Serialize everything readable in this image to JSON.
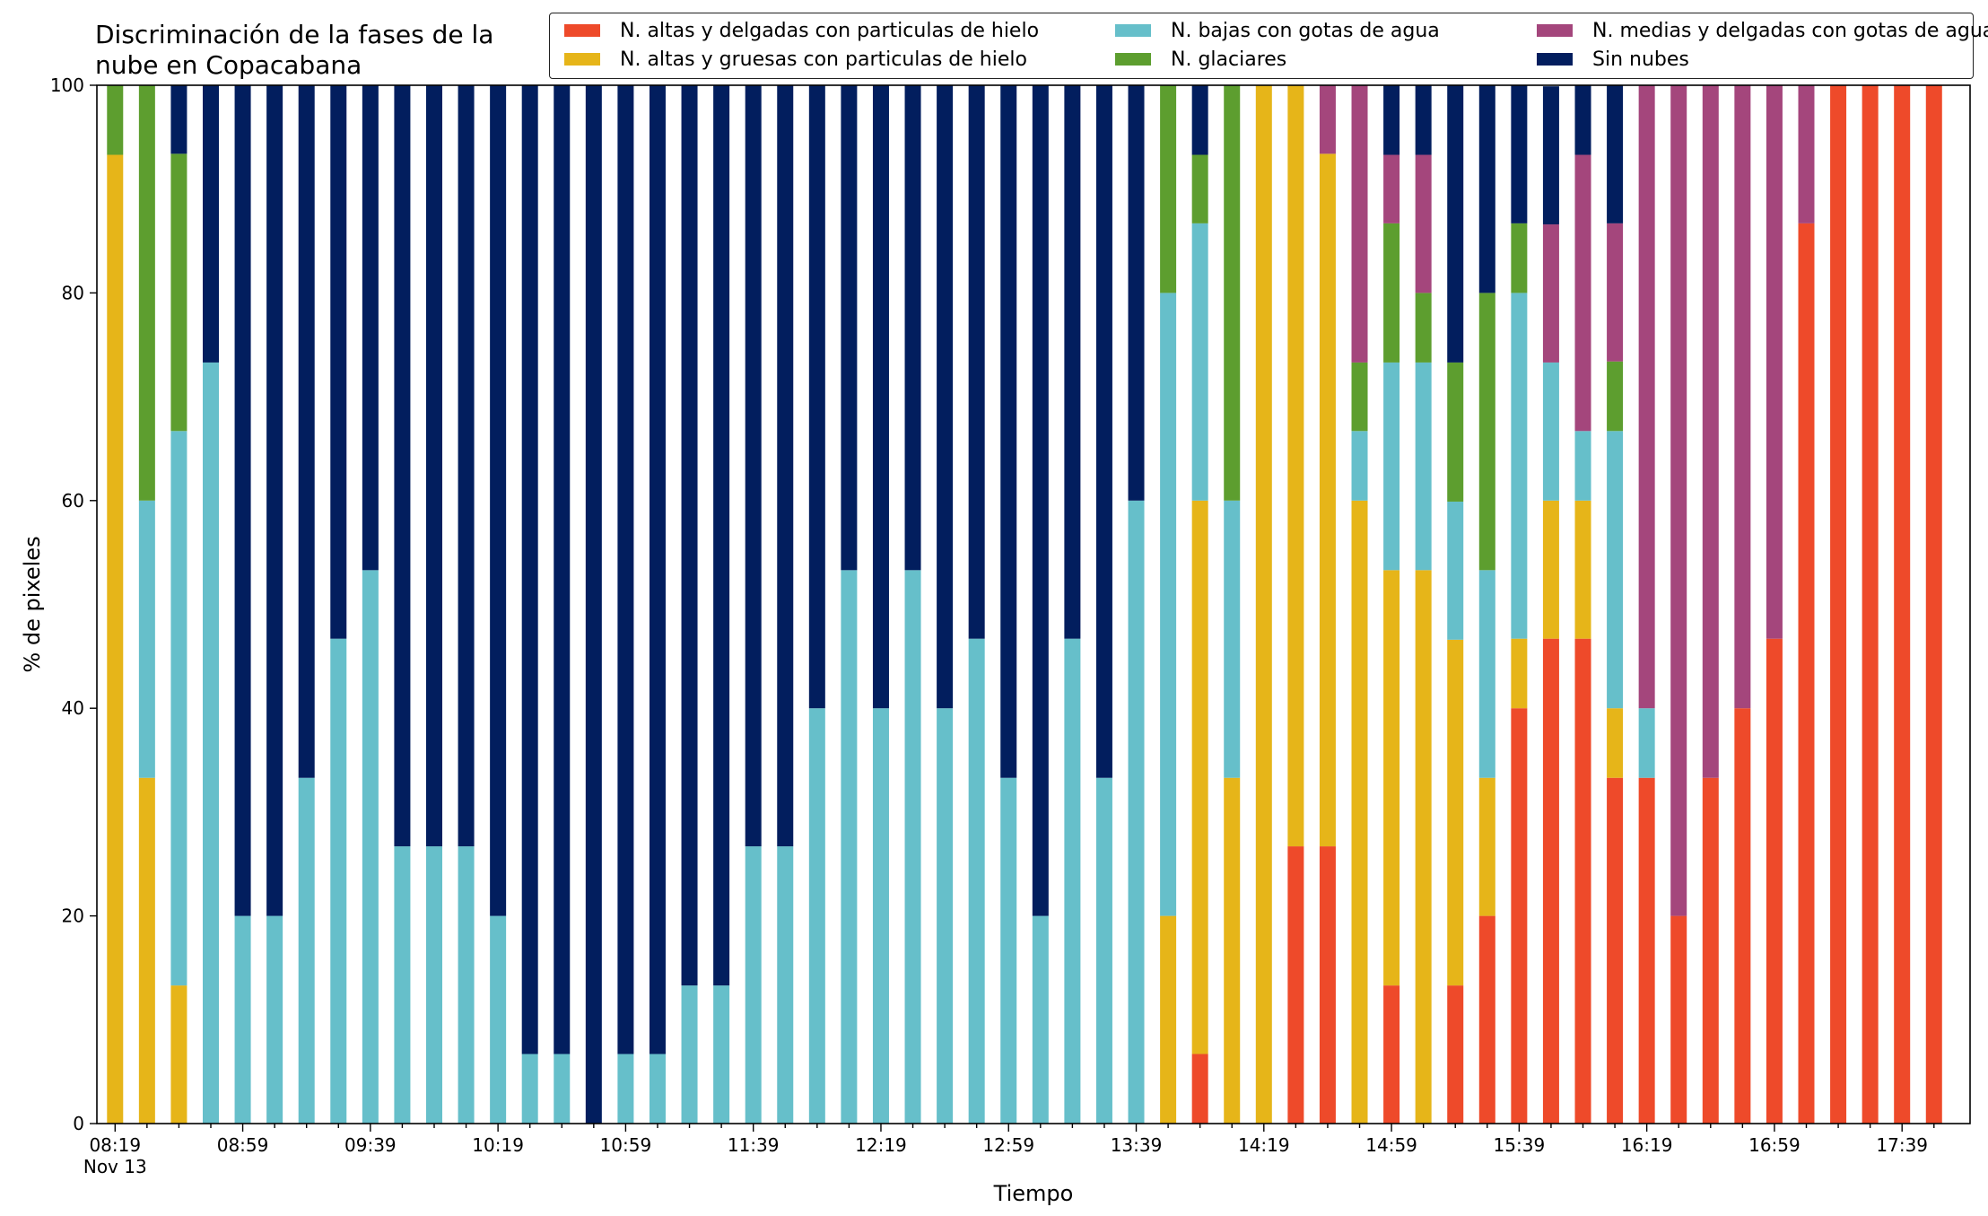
{
  "chart_data": {
    "type": "bar",
    "stacked": true,
    "title": "Discriminación de la fases de la nube en Copacabana",
    "title_lines": [
      "Discriminación de la fases de la",
      "nube en Copacabana"
    ],
    "xlabel": "Tiempo",
    "ylabel": "% de pixeles",
    "ylim": [
      0,
      100
    ],
    "yticks": [
      0,
      20,
      40,
      60,
      80,
      100
    ],
    "xtick_labels": [
      "08:19",
      "08:59",
      "09:39",
      "10:19",
      "10:59",
      "11:39",
      "12:19",
      "12:59",
      "13:39",
      "14:19",
      "14:59",
      "15:39",
      "16:19",
      "16:59",
      "17:39"
    ],
    "xtick_sublabel": "Nov 13",
    "grid": false,
    "legend_position": "top-right",
    "categories": [
      "08:19",
      "08:29",
      "08:39",
      "08:49",
      "08:59",
      "09:09",
      "09:19",
      "09:29",
      "09:39",
      "09:49",
      "09:59",
      "10:09",
      "10:19",
      "10:29",
      "10:39",
      "10:49",
      "10:59",
      "11:09",
      "11:19",
      "11:29",
      "11:39",
      "11:49",
      "11:59",
      "12:09",
      "12:19",
      "12:29",
      "12:39",
      "12:49",
      "12:59",
      "13:09",
      "13:19",
      "13:29",
      "13:39",
      "13:49",
      "13:59",
      "14:09",
      "14:19",
      "14:29",
      "14:39",
      "14:49",
      "14:59",
      "15:09",
      "15:19",
      "15:29",
      "15:39",
      "15:49",
      "15:59",
      "16:09",
      "16:19",
      "16:29",
      "16:39",
      "16:49",
      "16:59",
      "17:09",
      "17:19",
      "17:29",
      "17:39",
      "17:49"
    ],
    "series": [
      {
        "name": "N. altas y delgadas con particulas de hielo",
        "color": "#ee4a2a",
        "values": [
          0,
          0,
          0,
          0,
          0,
          0,
          0,
          0,
          0,
          0,
          0,
          0,
          0,
          0,
          0,
          0,
          0,
          0,
          0,
          0,
          0,
          0,
          0,
          0,
          0,
          0,
          0,
          0,
          0,
          0,
          0,
          0,
          0,
          0,
          6.7,
          0,
          0,
          26.7,
          26.7,
          0,
          13.3,
          0,
          13.3,
          20,
          40,
          46.7,
          46.7,
          33.3,
          33.3,
          20,
          33.3,
          40,
          46.7,
          86.7,
          100,
          100,
          100,
          100
        ]
      },
      {
        "name": "N. altas y gruesas con particulas de hielo",
        "color": "#e6b519",
        "values": [
          93.3,
          33.3,
          13.3,
          0,
          0,
          0,
          0,
          0,
          0,
          0,
          0,
          0,
          0,
          0,
          0,
          0,
          0,
          0,
          0,
          0,
          0,
          0,
          0,
          0,
          0,
          0,
          0,
          0,
          0,
          0,
          0,
          0,
          0,
          20,
          53.3,
          33.3,
          100,
          73.3,
          66.7,
          60,
          40,
          53.3,
          33.3,
          13.3,
          6.7,
          13.3,
          13.3,
          6.7,
          0,
          0,
          0,
          0,
          0,
          0,
          0,
          0,
          0,
          0
        ]
      },
      {
        "name": "N. bajas con gotas de agua",
        "color": "#66bfca",
        "values": [
          0,
          26.7,
          53.4,
          73.3,
          20,
          20,
          33.3,
          46.7,
          53.3,
          26.7,
          26.7,
          26.7,
          20,
          6.7,
          6.7,
          0,
          6.7,
          6.7,
          13.3,
          13.3,
          26.7,
          26.7,
          40,
          53.3,
          40,
          53.3,
          40,
          46.7,
          33.3,
          20,
          46.7,
          33.3,
          60,
          60,
          26.7,
          26.7,
          0,
          0,
          0,
          6.7,
          20,
          20,
          13.3,
          20,
          33.3,
          13.3,
          6.7,
          26.7,
          6.7,
          0,
          0,
          0,
          0,
          0,
          0,
          0,
          0,
          0
        ]
      },
      {
        "name": "N. glaciares",
        "color": "#5d9e2f",
        "values": [
          6.7,
          40,
          26.7,
          0,
          0,
          0,
          0,
          0,
          0,
          0,
          0,
          0,
          0,
          0,
          0,
          0,
          0,
          0,
          0,
          0,
          0,
          0,
          0,
          0,
          0,
          0,
          0,
          0,
          0,
          0,
          0,
          0,
          0,
          20,
          6.6,
          40,
          0,
          0,
          0,
          6.6,
          13.4,
          6.7,
          13.4,
          26.7,
          6.7,
          0,
          0,
          6.7,
          0,
          0,
          0,
          0,
          0,
          0,
          0,
          0,
          0,
          0
        ]
      },
      {
        "name": "N. medias y delgadas con gotas de agua",
        "color": "#a4467c",
        "values": [
          0,
          0,
          0,
          0,
          0,
          0,
          0,
          0,
          0,
          0,
          0,
          0,
          0,
          0,
          0,
          0,
          0,
          0,
          0,
          0,
          0,
          0,
          0,
          0,
          0,
          0,
          0,
          0,
          0,
          0,
          0,
          0,
          0,
          0,
          0,
          0,
          0,
          0,
          6.6,
          26.7,
          6.6,
          13.3,
          0,
          0,
          0,
          13.3,
          26.6,
          13.3,
          60,
          80,
          66.7,
          60,
          53.3,
          13.3,
          0,
          0,
          0,
          0
        ]
      },
      {
        "name": "Sin nubes",
        "color": "#021e5e",
        "values": [
          0,
          0,
          6.7,
          26.7,
          80,
          80,
          66.7,
          53.3,
          46.7,
          73.3,
          73.3,
          73.3,
          80,
          93.3,
          93.3,
          100,
          93.3,
          93.3,
          86.7,
          86.7,
          73.3,
          73.3,
          60,
          46.7,
          60,
          46.7,
          60,
          53.3,
          66.7,
          80,
          53.3,
          66.7,
          40,
          0,
          6.7,
          0,
          0,
          0,
          0,
          0,
          6.7,
          6.7,
          26.7,
          20,
          13.3,
          13.3,
          6.7,
          13.3,
          0,
          0,
          0,
          0,
          0,
          0,
          0,
          0,
          0,
          0
        ]
      }
    ]
  }
}
